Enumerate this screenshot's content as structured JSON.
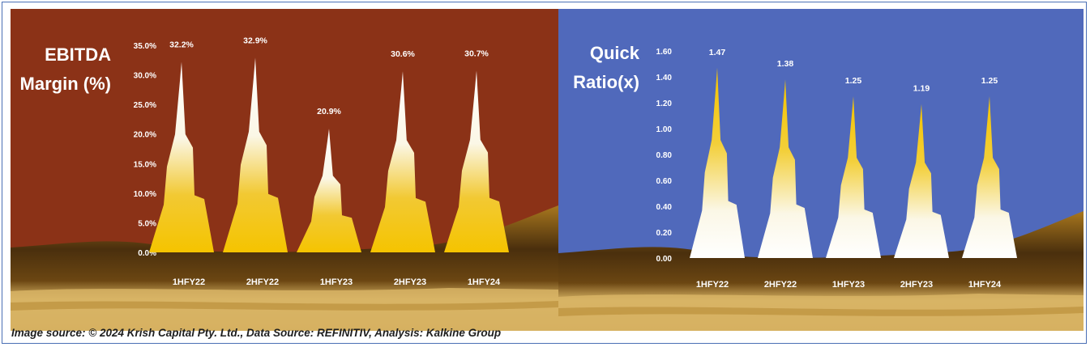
{
  "caption": "Image source: © 2024 Krish Capital Pty. Ltd., Data Source: REFINITIV, Analysis: Kalkine Group",
  "colors": {
    "left_background": "#8b3217",
    "right_background": "#5069bb",
    "ground_dark": "#4a2f0d",
    "ground_mid": "#a8771e",
    "ground_light": "#d8b465",
    "spike_yellow": "#f5c400",
    "spike_white": "#fbf7e6"
  },
  "chart_data": [
    {
      "type": "bar",
      "title_lines": [
        "EBITDA",
        "Margin (%)"
      ],
      "categories": [
        "1HFY22",
        "2HFY22",
        "1HFY23",
        "2HFY23",
        "1HFY24"
      ],
      "values": [
        32.2,
        32.9,
        20.9,
        30.6,
        30.7
      ],
      "value_labels": [
        "32.2%",
        "32.9%",
        "20.9%",
        "30.6%",
        "30.7%"
      ],
      "ylim": [
        0,
        35
      ],
      "yticks": [
        "0.0%",
        "5.0%",
        "10.0%",
        "15.0%",
        "20.0%",
        "25.0%",
        "30.0%",
        "35.0%"
      ],
      "grid": false,
      "legend": "none"
    },
    {
      "type": "bar",
      "title_lines": [
        "Quick",
        "Ratio(x)"
      ],
      "categories": [
        "1HFY22",
        "2HFY22",
        "1HFY23",
        "2HFY23",
        "1HFY24"
      ],
      "values": [
        1.47,
        1.38,
        1.25,
        1.19,
        1.25
      ],
      "value_labels": [
        "1.47",
        "1.38",
        "1.25",
        "1.19",
        "1.25"
      ],
      "ylim": [
        0,
        1.6
      ],
      "yticks": [
        "0.00",
        "0.20",
        "0.40",
        "0.60",
        "0.80",
        "1.00",
        "1.20",
        "1.40",
        "1.60"
      ],
      "grid": false,
      "legend": "none"
    }
  ]
}
